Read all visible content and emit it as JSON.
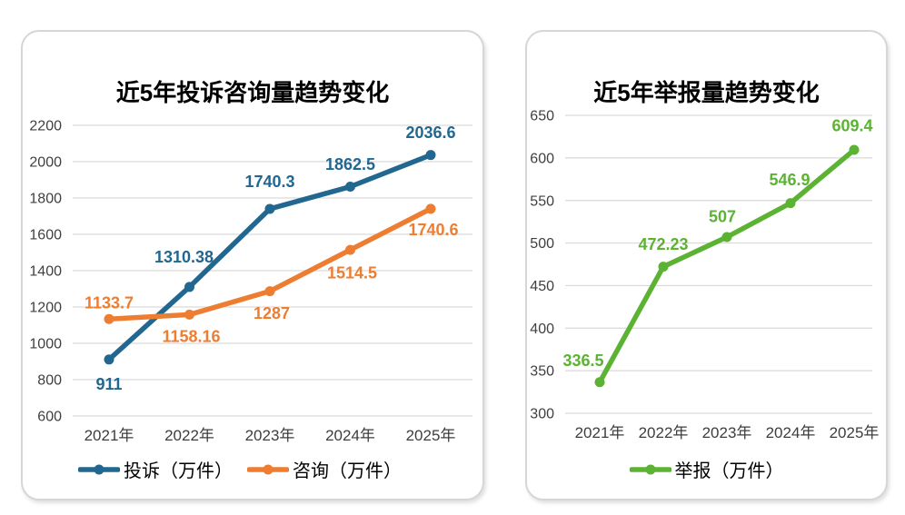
{
  "page": {
    "background": "#ffffff",
    "grid_color": "#d9d9d9"
  },
  "chart_data": [
    {
      "type": "line",
      "title": "近5年投诉咨询量趋势变化",
      "categories": [
        "2021年",
        "2022年",
        "2023年",
        "2024年",
        "2025年"
      ],
      "xlabel": "",
      "ylabel": "",
      "ylim": [
        600,
        2200
      ],
      "yticks": [
        600,
        800,
        1000,
        1200,
        1400,
        1600,
        1800,
        2000,
        2200
      ],
      "grid": true,
      "legend_position": "bottom",
      "series": [
        {
          "name": "投诉（万件）",
          "color": "#21678F",
          "values": [
            911,
            1310.38,
            1740.3,
            1862.5,
            2036.6
          ],
          "labels": [
            "911",
            "1310.38",
            "1740.3",
            "1862.5",
            "2036.6"
          ],
          "label_offsets": [
            [
              0,
              27
            ],
            [
              -6,
              -33
            ],
            [
              0,
              -30
            ],
            [
              0,
              -25
            ],
            [
              0,
              -25
            ]
          ]
        },
        {
          "name": "咨询（万件）",
          "color": "#ED7D31",
          "values": [
            1133.7,
            1158.16,
            1287,
            1514.5,
            1740.6
          ],
          "labels": [
            "1133.7",
            "1158.16",
            "1287",
            "1514.5",
            "1740.6"
          ],
          "label_offsets": [
            [
              0,
              -18
            ],
            [
              2,
              24
            ],
            [
              2,
              24
            ],
            [
              2,
              25
            ],
            [
              3,
              23
            ]
          ]
        }
      ]
    },
    {
      "type": "line",
      "title": "近5年举报量趋势变化",
      "categories": [
        "2021年",
        "2022年",
        "2023年",
        "2024年",
        "2025年"
      ],
      "xlabel": "",
      "ylabel": "",
      "ylim": [
        300,
        650
      ],
      "yticks": [
        300,
        350,
        400,
        450,
        500,
        550,
        600,
        650
      ],
      "grid": true,
      "legend_position": "bottom",
      "series": [
        {
          "name": "举报（万件）",
          "color": "#5CB233",
          "values": [
            336.5,
            472.23,
            507,
            546.9,
            609.4
          ],
          "labels": [
            "336.5",
            "472.23",
            "507",
            "546.9",
            "609.4"
          ],
          "label_offsets": [
            [
              -18,
              -24
            ],
            [
              0,
              -25
            ],
            [
              -5,
              -23
            ],
            [
              -1,
              -26
            ],
            [
              -2,
              -27
            ]
          ]
        }
      ]
    }
  ]
}
